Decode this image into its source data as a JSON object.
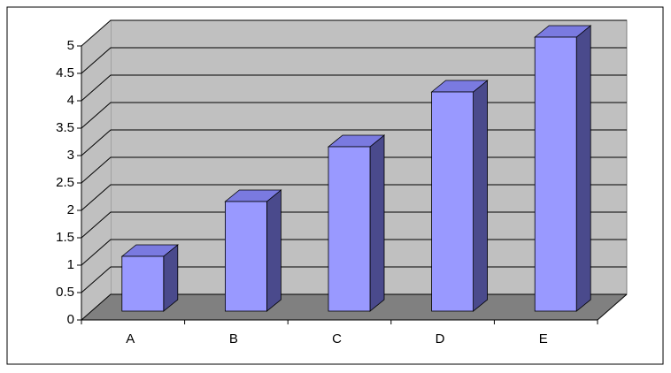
{
  "chart_data": {
    "type": "bar3d",
    "categories": [
      "A",
      "B",
      "C",
      "D",
      "E"
    ],
    "values": [
      1,
      2,
      3,
      4,
      5
    ],
    "color": "#9999ff",
    "ylim": [
      0,
      5
    ],
    "yticks": [
      0,
      0.5,
      1,
      1.5,
      2,
      2.5,
      3,
      3.5,
      4,
      4.5,
      5
    ],
    "grid": true
  }
}
